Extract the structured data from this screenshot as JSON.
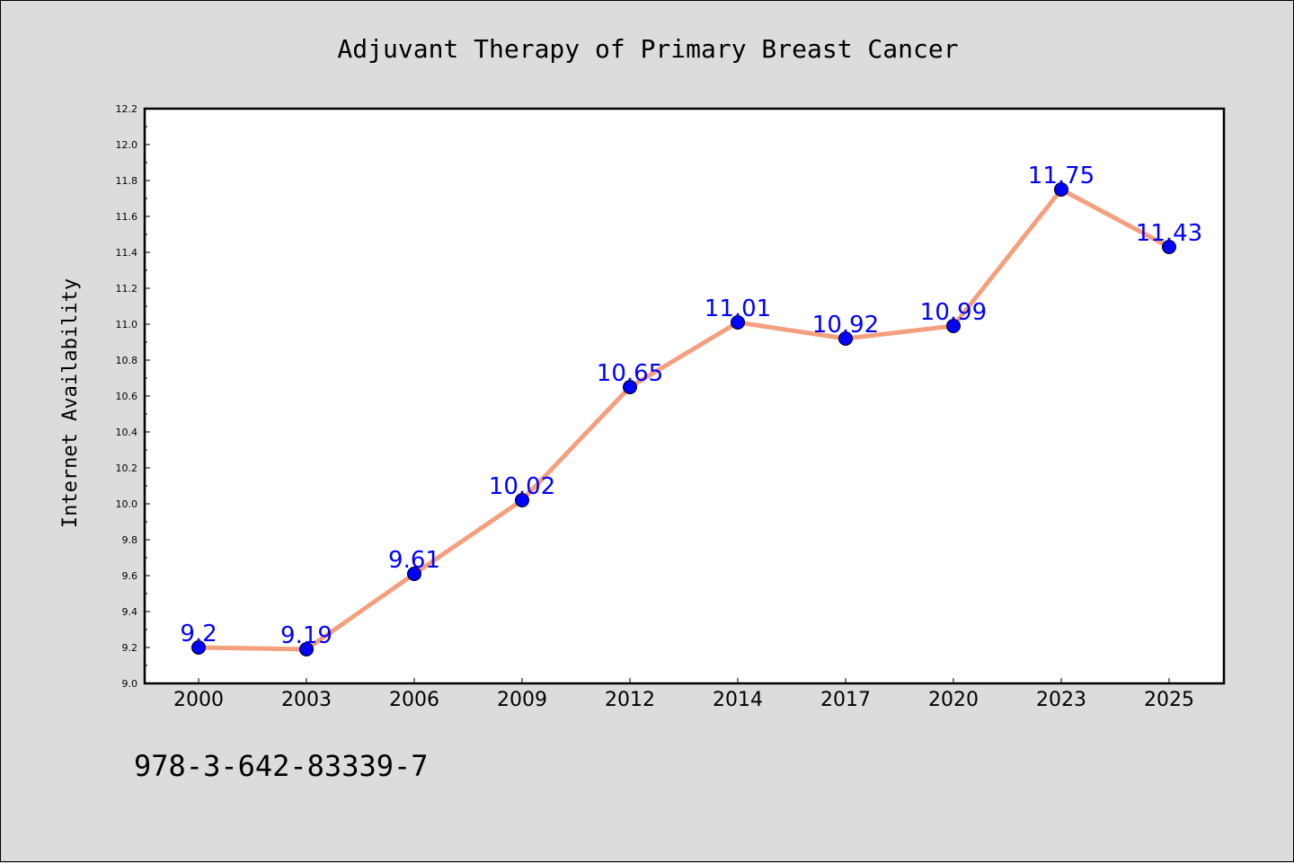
{
  "chart_data": {
    "type": "line",
    "title": "Adjuvant Therapy of Primary Breast Cancer",
    "xlabel": "",
    "ylabel": "Internet Availability",
    "categories": [
      "2000",
      "2003",
      "2006",
      "2009",
      "2012",
      "2014",
      "2017",
      "2020",
      "2023",
      "2025"
    ],
    "series": [
      {
        "values": [
          9.2,
          9.19,
          9.61,
          10.02,
          10.65,
          11.01,
          10.92,
          10.99,
          11.75,
          11.43
        ]
      }
    ],
    "data_labels": [
      "9.2",
      "9.19",
      "9.61",
      "10.02",
      "10.65",
      "11.01",
      "10.92",
      "10.99",
      "11.75",
      "11.43"
    ],
    "ylim": [
      9.0,
      12.2
    ],
    "ytick_labels": [
      "9.0",
      "9.2",
      "9.4",
      "9.6",
      "9.8",
      "10.0",
      "10.2",
      "10.4",
      "10.6",
      "10.8",
      "11.0",
      "11.2",
      "11.4",
      "11.6",
      "11.8",
      "12.0",
      "12.2"
    ],
    "grid": false,
    "line_color": "#f4a07e",
    "marker_color": "#0000ff",
    "label_color": "#0000ff"
  },
  "footnote": "978-3-642-83339-7"
}
